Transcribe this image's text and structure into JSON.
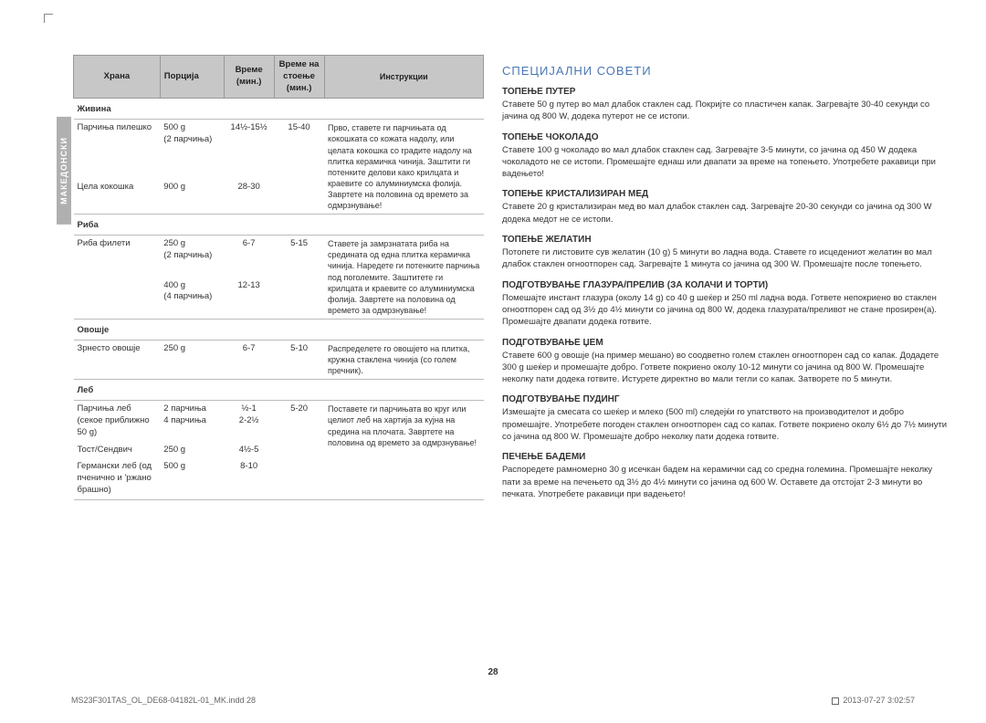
{
  "sideTab": "МАКЕДОНСКИ",
  "table": {
    "headers": {
      "food": "Храна",
      "portion": "Порција",
      "time": "Време (мин.)",
      "stand": "Време на стоење (мин.)",
      "instr": "Инструкции"
    },
    "sections": [
      {
        "title": "Живина",
        "rows": [
          {
            "name": "Парчиња пилешко",
            "portion": "500 g\n(2 парчиња)",
            "time": "14½-15½",
            "stand": "15-40",
            "instr": "Прво, ставете ги парчињата од кокошката со кожата надолу, или целата кокошка со градите надолу на плитка керамичка чинија. Заштити ги потенките делови како крилцата и краевите со алуминиумска фолија. Завртете на половина од времето за одмрзнување!"
          },
          {
            "name": "Цела кокошка",
            "portion": "900 g",
            "time": "28-30",
            "stand": ""
          }
        ]
      },
      {
        "title": "Риба",
        "rows": [
          {
            "name": "Риба филети",
            "portion": "250 g\n(2 парчиња)",
            "time": "6-7",
            "stand": "5-15",
            "instr": "Ставете ја замрзнатата риба на средината од една плитка керамичка чинија. Наредете ги потенките парчиња под поголемите. Заштитете ги крилцата и краевите со алуминиумска фолија. Завртете на половина од времето за одмрзнување!"
          },
          {
            "name": "",
            "portion": "400 g\n(4 парчиња)",
            "time": "12-13",
            "stand": ""
          }
        ]
      },
      {
        "title": "Овошје",
        "rows": [
          {
            "name": "Зрнесто овошје",
            "portion": "250 g",
            "time": "6-7",
            "stand": "5-10",
            "instr": "Распределете го овошјето на плитка, кружна стаклена чинија (со голем пречник)."
          }
        ]
      },
      {
        "title": "Леб",
        "rows": [
          {
            "name": "Парчиња леб (секое приближно 50 g)",
            "portion": "2 парчиња\n4 парчиња",
            "time": "½-1\n2-2½",
            "stand": "5-20",
            "instr": "Поставете ги парчињата во круг или целиот леб на хартија за кујна на средина на плочата. Завртете на половина од времето за одмрзнување!"
          },
          {
            "name": "Тост/Сендвич",
            "portion": "250 g",
            "time": "4½-5",
            "stand": ""
          },
          {
            "name": "Германски леб (од пченично и 'ржано брашно)",
            "portion": "500 g",
            "time": "8-10",
            "stand": ""
          }
        ]
      }
    ]
  },
  "special": {
    "title": "СПЕЦИЈАЛНИ СОВЕТИ",
    "tips": [
      {
        "title": "ТОПЕЊЕ ПУТЕР",
        "body": "Ставете 50 g путер во мал длабок стаклен сад. Покријте со пластичен капак. Загревајте 30-40 секунди со јачина од 800 W, додека путерот не се истопи."
      },
      {
        "title": "ТОПЕЊЕ ЧОКОЛАДО",
        "body": "Ставете 100 g чоколадо во мал длабок стаклен сад. Загревајте 3-5 минути, со јачина од 450 W додека чоколадото не се истопи. Промешајте еднаш или двапати за време на топењето. Употребете ракавици при вадењето!"
      },
      {
        "title": "ТОПЕЊЕ КРИСТАЛИЗИРАН МЕД",
        "body": "Ставете 20 g кристализиран мед во мал длабок стаклен сад. Загревајте 20-30 секунди со јачина од 300 W додека медот не се истопи."
      },
      {
        "title": "ТОПЕЊЕ ЖЕЛАТИН",
        "body": "Потопете ги листовите сув желатин (10 g) 5 минути во ладна вода. Ставете го исцедениот желатин во мал длабок стаклен огноотпорен сад. Загревајте 1 минута со јачина од 300 W. Промешајте после топењето."
      },
      {
        "title": "ПОДГОТВУВАЊЕ ГЛАЗУРА/ПРЕЛИВ (ЗА КОЛАЧИ И ТОРТИ)",
        "body": "Помешајте инстант глазура (околу 14 g) со 40 g шеќер и 250 ml ладна вода. Гответе непокриено во стаклен огноотпорен сад од 3½ до 4½ минути со јачина од 800 W, додека глазурата/преливот не стане проѕирен(а). Промешајте двапати додека готвите."
      },
      {
        "title": "ПОДГОТВУВАЊЕ ЏЕМ",
        "body": "Ставете 600 g овошје (на пример мешано) во соодветно голем стаклен огноотпорен сад со капак. Додадете 300 g шеќер и промешајте добро. Гответе покриено околу 10-12 минути со јачина од 800 W. Промешајте неколку пати додека готвите. Истурете директно во мали тегли со капак. Затворете по 5 минути."
      },
      {
        "title": "ПОДГОТВУВАЊЕ ПУДИНГ",
        "body": "Измешајте ја смесата со шеќер и млеко (500 ml) следејќи го упатството на производителот и добро промешајте. Употребете погоден стаклен огноотпорен сад со капак. Гответе покриено околу 6½ до 7½ минути со јачина од 800 W. Промешајте добро неколку пати додека готвите."
      },
      {
        "title": "ПЕЧЕЊЕ БАДЕМИ",
        "body": "Распоредете рамномерно 30 g исечкан бадем на керамички сад со средна големина. Промешајте неколку пати за време на печењето од 3½ до 4½ минути со јачина од 600 W. Оставете да отстојат 2-3 минути во печката. Употребете ракавици при вадењето!"
      }
    ]
  },
  "pageNum": "28",
  "footerLeft": "MS23F301TAS_OL_DE68-04182L-01_MK.indd   28",
  "footerRight": "2013-07-27    3:02:57"
}
